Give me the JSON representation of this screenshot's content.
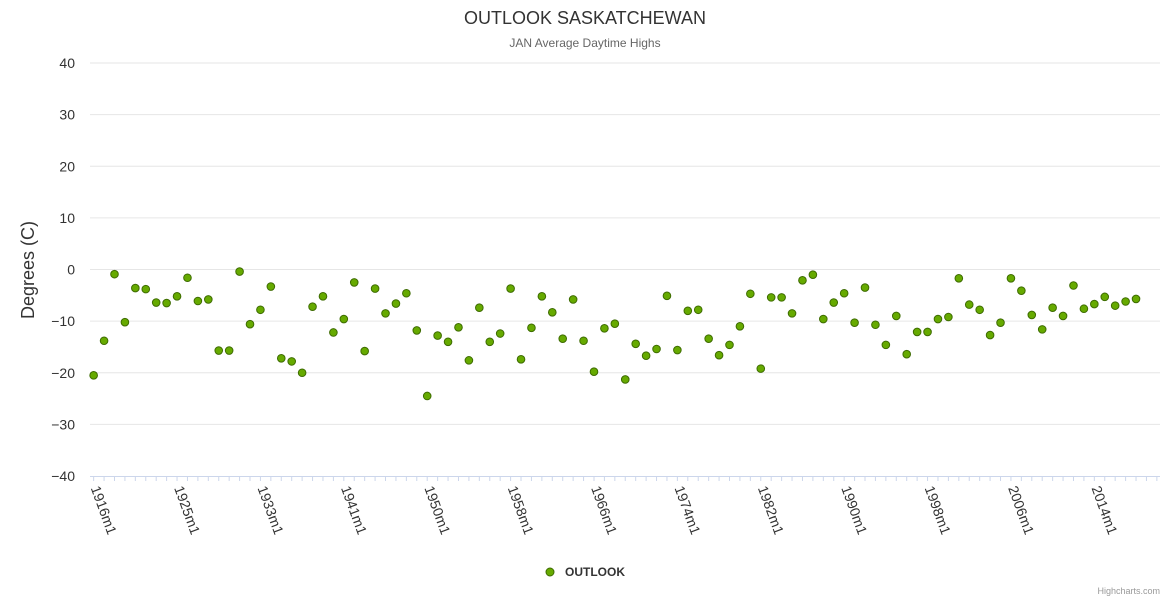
{
  "chart_data": {
    "type": "scatter",
    "title": "OUTLOOK SASKATCHEWAN",
    "subtitle": "JAN Average Daytime Highs",
    "ylabel": "Degrees (C)",
    "xlabel": "",
    "ylim": [
      -40,
      40
    ],
    "yticks": [
      40,
      30,
      20,
      10,
      0,
      -10,
      -20,
      -30,
      -40
    ],
    "ytick_labels": [
      "40",
      "30",
      "20",
      "10",
      "0",
      "−10",
      "−20",
      "−30",
      "−40"
    ],
    "x_start_year": 1916,
    "x_end_year": 2018,
    "xtick_labels": [
      {
        "label": "1916m1",
        "year": 1916
      },
      {
        "label": "1925m1",
        "year": 1924
      },
      {
        "label": "1933m1",
        "year": 1932
      },
      {
        "label": "1941m1",
        "year": 1940
      },
      {
        "label": "1950m1",
        "year": 1948
      },
      {
        "label": "1958m1",
        "year": 1956
      },
      {
        "label": "1966m1",
        "year": 1964
      },
      {
        "label": "1974m1",
        "year": 1972
      },
      {
        "label": "1982m1",
        "year": 1980
      },
      {
        "label": "1990m1",
        "year": 1988
      },
      {
        "label": "1998m1",
        "year": 1996
      },
      {
        "label": "2006m1",
        "year": 2004
      },
      {
        "label": "2014m1",
        "year": 2012
      }
    ],
    "series": [
      {
        "name": "OUTLOOK",
        "color": "#66aa00",
        "points": [
          [
            1916,
            -20.5
          ],
          [
            1917,
            -13.8
          ],
          [
            1918,
            -0.9
          ],
          [
            1919,
            -10.2
          ],
          [
            1920,
            -3.6
          ],
          [
            1921,
            -3.8
          ],
          [
            1922,
            -6.4
          ],
          [
            1923,
            -6.5
          ],
          [
            1924,
            -5.2
          ],
          [
            1925,
            -1.6
          ],
          [
            1926,
            -6.1
          ],
          [
            1927,
            -5.8
          ],
          [
            1928,
            -15.7
          ],
          [
            1929,
            -15.7
          ],
          [
            1930,
            -0.4
          ],
          [
            1931,
            -10.6
          ],
          [
            1932,
            -7.8
          ],
          [
            1933,
            -3.3
          ],
          [
            1934,
            -17.2
          ],
          [
            1935,
            -17.8
          ],
          [
            1936,
            -20.0
          ],
          [
            1937,
            -7.2
          ],
          [
            1938,
            -5.2
          ],
          [
            1939,
            -12.2
          ],
          [
            1940,
            -9.6
          ],
          [
            1941,
            -2.5
          ],
          [
            1942,
            -15.8
          ],
          [
            1943,
            -3.7
          ],
          [
            1944,
            -8.5
          ],
          [
            1945,
            -6.6
          ],
          [
            1946,
            -4.6
          ],
          [
            1947,
            -11.8
          ],
          [
            1948,
            -24.5
          ],
          [
            1949,
            -12.8
          ],
          [
            1950,
            -14.0
          ],
          [
            1951,
            -11.2
          ],
          [
            1952,
            -17.6
          ],
          [
            1953,
            -7.4
          ],
          [
            1954,
            -14.0
          ],
          [
            1955,
            -12.4
          ],
          [
            1956,
            -3.7
          ],
          [
            1957,
            -17.4
          ],
          [
            1958,
            -11.3
          ],
          [
            1959,
            -5.2
          ],
          [
            1960,
            -8.3
          ],
          [
            1961,
            -13.4
          ],
          [
            1962,
            -5.8
          ],
          [
            1963,
            -13.8
          ],
          [
            1964,
            -19.8
          ],
          [
            1965,
            -11.4
          ],
          [
            1966,
            -10.5
          ],
          [
            1967,
            -21.3
          ],
          [
            1968,
            -14.4
          ],
          [
            1969,
            -16.7
          ],
          [
            1970,
            -15.4
          ],
          [
            1971,
            -5.1
          ],
          [
            1972,
            -15.6
          ],
          [
            1973,
            -8.0
          ],
          [
            1974,
            -7.8
          ],
          [
            1975,
            -13.4
          ],
          [
            1976,
            -16.6
          ],
          [
            1977,
            -14.6
          ],
          [
            1978,
            -11.0
          ],
          [
            1979,
            -4.7
          ],
          [
            1980,
            -19.2
          ],
          [
            1981,
            -5.4
          ],
          [
            1982,
            -5.4
          ],
          [
            1983,
            -8.5
          ],
          [
            1984,
            -2.1
          ],
          [
            1985,
            -1.0
          ],
          [
            1986,
            -9.6
          ],
          [
            1987,
            -6.4
          ],
          [
            1988,
            -4.6
          ],
          [
            1989,
            -10.3
          ],
          [
            1990,
            -3.5
          ],
          [
            1991,
            -10.7
          ],
          [
            1992,
            -14.6
          ],
          [
            1993,
            -9.0
          ],
          [
            1994,
            -16.4
          ],
          [
            1995,
            -12.1
          ],
          [
            1996,
            -12.1
          ],
          [
            1997,
            -9.6
          ],
          [
            1998,
            -9.2
          ],
          [
            1999,
            -1.7
          ],
          [
            2000,
            -6.8
          ],
          [
            2001,
            -7.8
          ],
          [
            2002,
            -12.7
          ],
          [
            2003,
            -10.3
          ],
          [
            2004,
            -1.7
          ],
          [
            2005,
            -4.1
          ],
          [
            2006,
            -8.8
          ],
          [
            2007,
            -11.6
          ],
          [
            2008,
            -7.4
          ],
          [
            2009,
            -9.0
          ],
          [
            2010,
            -3.1
          ],
          [
            2011,
            -7.6
          ],
          [
            2012,
            -6.7
          ],
          [
            2013,
            -5.3
          ],
          [
            2014,
            -7.0
          ],
          [
            2015,
            -6.2
          ],
          [
            2016,
            -5.7
          ]
        ]
      }
    ],
    "legend": "bottom-center",
    "credits": "Highcharts.com"
  }
}
